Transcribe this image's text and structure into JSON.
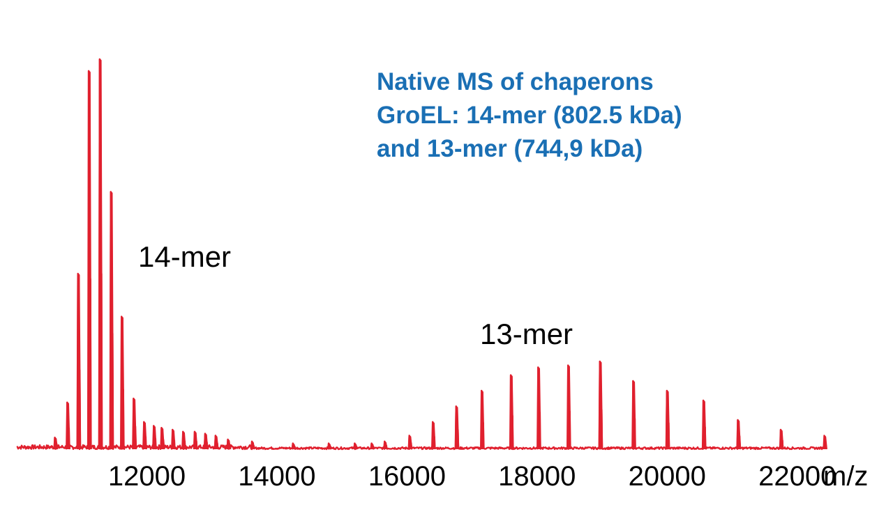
{
  "colors": {
    "spectrum": "#e0202e",
    "title": "#1a6fb4",
    "text": "#000000"
  },
  "chart_data": {
    "type": "line",
    "title_lines": [
      "Native MS of chaperons",
      "GroEL: 14-mer (802.5 kDa)",
      "and 13-mer (744,9 kDa)"
    ],
    "xlabel": "m/z",
    "ylabel": "",
    "xlim": [
      10000,
      22400
    ],
    "ylim": [
      0,
      100
    ],
    "x_ticks": [
      12000,
      14000,
      16000,
      18000,
      20000,
      22000
    ],
    "x_tick_labels": [
      "12000",
      "14000",
      "16000",
      "18000",
      "20000",
      "22000"
    ],
    "annotations": [
      {
        "text": "14-mer",
        "x": 12200,
        "y": 49
      },
      {
        "text": "13-mer",
        "x": 17650,
        "y": 28
      }
    ],
    "series": [
      {
        "peaks": [
          {
            "x": 10590,
            "y": 3
          },
          {
            "x": 10780,
            "y": 12
          },
          {
            "x": 10945,
            "y": 45
          },
          {
            "x": 11110,
            "y": 97
          },
          {
            "x": 11280,
            "y": 100
          },
          {
            "x": 11450,
            "y": 66
          },
          {
            "x": 11615,
            "y": 34
          },
          {
            "x": 11800,
            "y": 13
          },
          {
            "x": 11960,
            "y": 7
          },
          {
            "x": 12110,
            "y": 6
          },
          {
            "x": 12230,
            "y": 5.5
          },
          {
            "x": 12400,
            "y": 5
          },
          {
            "x": 12560,
            "y": 4.5
          },
          {
            "x": 12740,
            "y": 4.5
          },
          {
            "x": 12900,
            "y": 4
          },
          {
            "x": 13060,
            "y": 3.5
          },
          {
            "x": 13250,
            "y": 2.5
          },
          {
            "x": 13620,
            "y": 2
          },
          {
            "x": 14250,
            "y": 1.5
          },
          {
            "x": 14800,
            "y": 1.5
          },
          {
            "x": 15200,
            "y": 1.5
          },
          {
            "x": 15460,
            "y": 1.5
          },
          {
            "x": 15660,
            "y": 2
          },
          {
            "x": 16040,
            "y": 3.5
          },
          {
            "x": 16400,
            "y": 7
          },
          {
            "x": 16760,
            "y": 11
          },
          {
            "x": 17150,
            "y": 15
          },
          {
            "x": 17600,
            "y": 19
          },
          {
            "x": 18020,
            "y": 21
          },
          {
            "x": 18480,
            "y": 21.5
          },
          {
            "x": 18970,
            "y": 22.5
          },
          {
            "x": 19480,
            "y": 17.5
          },
          {
            "x": 20000,
            "y": 15
          },
          {
            "x": 20560,
            "y": 12.5
          },
          {
            "x": 21090,
            "y": 7.5
          },
          {
            "x": 21750,
            "y": 5
          },
          {
            "x": 22420,
            "y": 3.5
          }
        ]
      }
    ]
  }
}
